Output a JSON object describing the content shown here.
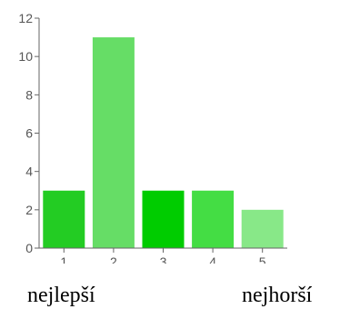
{
  "chart_data": {
    "type": "bar",
    "title": "",
    "xlabel": "",
    "ylabel": "",
    "categories": [
      "1",
      "2",
      "3",
      "4",
      "5"
    ],
    "values": [
      3,
      11,
      3,
      3,
      2
    ],
    "bar_colors": [
      "#23cc23",
      "#66dd66",
      "#00cc00",
      "#44dd44",
      "#88e888"
    ],
    "ylim": [
      0,
      12
    ],
    "yticks": [
      0,
      2,
      4,
      6,
      8,
      10,
      12
    ],
    "grid": false,
    "legend": "none"
  },
  "scale_labels": {
    "best": "nejlepší",
    "worst": "nejhorší"
  },
  "colors": {
    "axis": "#666666",
    "tick_text": "#555555"
  }
}
